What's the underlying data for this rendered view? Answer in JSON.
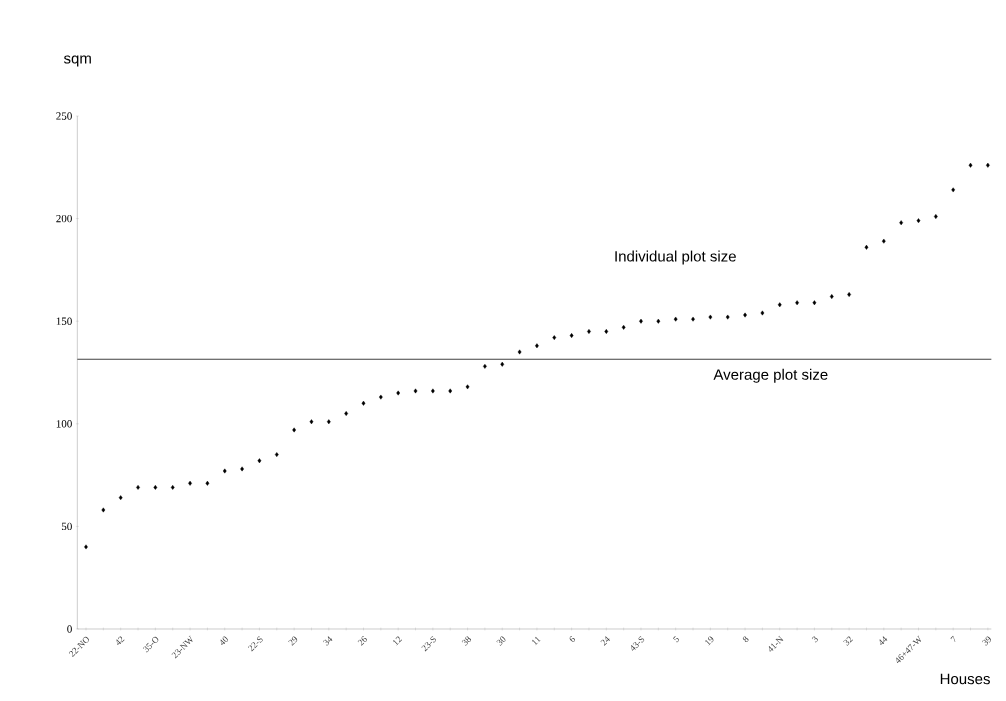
{
  "chart_data": {
    "type": "scatter",
    "ylabel": "sqm",
    "xlabel": "Houses",
    "categories": [
      "22-NO",
      null,
      "42",
      null,
      "35-O",
      null,
      "23-NW",
      null,
      "40",
      null,
      "22-S",
      null,
      "29",
      null,
      "34",
      null,
      "26",
      null,
      "12",
      null,
      "23-S",
      null,
      "38",
      null,
      "30",
      null,
      "11",
      null,
      "6",
      null,
      "24",
      null,
      "43-S",
      null,
      "5",
      null,
      "19",
      null,
      "8",
      null,
      "41-N",
      null,
      "3",
      null,
      "32",
      null,
      "44",
      null,
      "46+47-W",
      null,
      "7",
      null,
      "39"
    ],
    "series": [
      {
        "color": "#000000",
        "values": [
          40,
          58,
          64,
          69,
          69,
          69,
          71,
          71,
          77,
          78,
          82,
          85,
          97,
          101,
          101,
          105,
          110,
          113,
          115,
          116,
          116,
          116,
          118,
          128,
          129,
          135,
          138,
          142,
          143,
          145,
          145,
          147,
          150,
          150,
          151,
          151,
          152,
          152,
          153,
          154,
          158,
          159,
          159,
          162,
          163,
          186,
          189,
          198,
          199,
          201,
          214,
          226,
          226
        ]
      }
    ],
    "marker": "diamond",
    "ylim": [
      0,
      250
    ],
    "yticks": [
      0,
      50,
      100,
      150,
      200,
      250
    ],
    "ref_lines": [
      {
        "axis": "y",
        "value": 131.5,
        "label": "Average plot size",
        "color": "#404040"
      }
    ],
    "annotations": [
      "Individual plot size"
    ]
  }
}
